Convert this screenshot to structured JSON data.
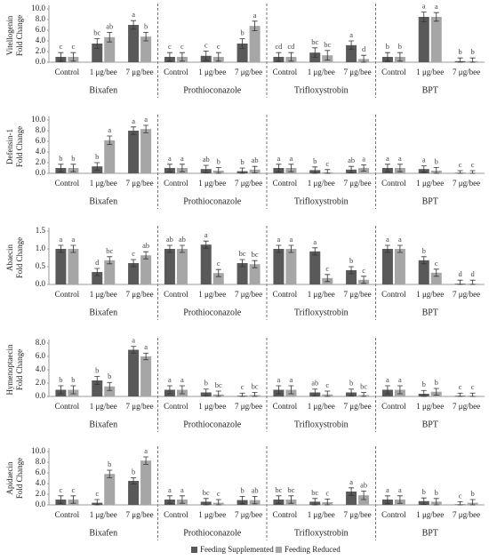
{
  "legend": [
    {
      "name": "Feeding Supplemented",
      "color": "#595959"
    },
    {
      "name": "Feeding Reduced",
      "color": "#a6a6a6"
    }
  ],
  "chart_data": [
    {
      "type": "bar",
      "ylabel": [
        "Vitellogenin",
        "Fold Change"
      ],
      "ylim": [
        0,
        10
      ],
      "yticks": [
        {
          "value": 0,
          "label": "0.0"
        },
        {
          "value": 2,
          "label": "2.0"
        },
        {
          "value": 4,
          "label": "4.0"
        },
        {
          "value": 6,
          "label": "6.0"
        },
        {
          "value": 8,
          "label": "8.0"
        },
        {
          "value": 10,
          "label": "10.0"
        }
      ],
      "groups": [
        "Bixafen",
        "Prothioconazole",
        "Trifloxystrobin",
        "BPT"
      ],
      "categories": [
        "Control",
        "1 μg/bee",
        "7 μg/bee",
        "Control",
        "1 μg/bee",
        "7 μg/bee",
        "Control",
        "1 μg/bee",
        "7 μg/bee",
        "Control",
        "1 μg/bee",
        "7 μg/bee"
      ],
      "series": [
        {
          "values": [
            1.0,
            3.5,
            7.0,
            1.0,
            1.2,
            3.5,
            1.0,
            1.8,
            3.2,
            1.0,
            8.5,
            0.2
          ],
          "errors": [
            0.8,
            0.9,
            0.8,
            0.8,
            0.9,
            0.9,
            0.8,
            0.9,
            0.8,
            0.8,
            0.9,
            0.6
          ],
          "letters": [
            "c",
            "bc",
            "a",
            "c",
            "c",
            "b",
            "cd",
            "bc",
            "a",
            "b",
            "a",
            "b"
          ]
        },
        {
          "values": [
            1.0,
            4.7,
            4.8,
            1.0,
            1.0,
            6.8,
            1.0,
            1.3,
            0.6,
            1.0,
            8.5,
            0.2
          ],
          "errors": [
            0.8,
            0.9,
            0.8,
            0.8,
            0.8,
            0.9,
            0.8,
            0.9,
            0.7,
            0.8,
            0.8,
            0.6
          ],
          "letters": [
            "c",
            "ab",
            "b",
            "c",
            "c",
            "a",
            "cd",
            "bc",
            "d",
            "b",
            "a",
            "b"
          ]
        }
      ]
    },
    {
      "type": "bar",
      "ylabel": [
        "Defensin-1",
        "Fold Change"
      ],
      "ylim": [
        0,
        10
      ],
      "yticks": [
        {
          "value": 0,
          "label": "0.0"
        },
        {
          "value": 2,
          "label": "2.0"
        },
        {
          "value": 4,
          "label": "4.0"
        },
        {
          "value": 6,
          "label": "6.0"
        },
        {
          "value": 8,
          "label": "8.0"
        },
        {
          "value": 10,
          "label": "10.0"
        }
      ],
      "groups": [
        "Bixafen",
        "Prothioconazole",
        "Trifloxystrobin",
        "BPT"
      ],
      "categories": [
        "Control",
        "1 μg/bee",
        "7 μg/bee",
        "Control",
        "1 μg/bee",
        "7 μg/bee",
        "Control",
        "1 μg/bee",
        "7 μg/bee",
        "Control",
        "1 μg/bee",
        "7 μg/bee"
      ],
      "series": [
        {
          "values": [
            1.0,
            1.3,
            8.0,
            1.0,
            0.8,
            0.4,
            1.0,
            0.6,
            0.7,
            1.0,
            0.8,
            0.1
          ],
          "errors": [
            0.7,
            0.7,
            0.7,
            0.7,
            0.7,
            0.6,
            0.7,
            0.6,
            0.6,
            0.7,
            0.6,
            0.4
          ],
          "letters": [
            "b",
            "b",
            "a",
            "a",
            "ab",
            "b",
            "a",
            "b",
            "ab",
            "a",
            "a",
            "c"
          ]
        },
        {
          "values": [
            1.0,
            6.2,
            8.3,
            1.0,
            0.5,
            0.7,
            1.0,
            0.2,
            1.0,
            1.0,
            0.5,
            0.1
          ],
          "errors": [
            0.7,
            0.8,
            0.7,
            0.7,
            0.6,
            0.6,
            0.7,
            0.5,
            0.6,
            0.7,
            0.6,
            0.4
          ],
          "letters": [
            "b",
            "a",
            "a",
            "a",
            "b",
            "ab",
            "a",
            "c",
            "a",
            "a",
            "b",
            "c"
          ]
        }
      ]
    },
    {
      "type": "bar",
      "ylabel": [
        "Abaecin",
        "Fold Change"
      ],
      "ylim": [
        0,
        1.5
      ],
      "yticks": [
        {
          "value": 0,
          "label": "0.0"
        },
        {
          "value": 0.5,
          "label": "0.5"
        },
        {
          "value": 1,
          "label": "1.0"
        },
        {
          "value": 1.5,
          "label": "1.5"
        }
      ],
      "groups": [
        "Bixafen",
        "Prothioconazole",
        "Trifloxystrobin",
        "BPT"
      ],
      "categories": [
        "Control",
        "1 μg/bee",
        "7 μg/bee",
        "Control",
        "1 μg/bee",
        "7 μg/bee",
        "Control",
        "1 μg/bee",
        "7 μg/bee",
        "Control",
        "1 μg/bee",
        "7 μg/bee"
      ],
      "series": [
        {
          "values": [
            1.0,
            0.35,
            0.6,
            1.0,
            1.12,
            0.6,
            1.0,
            0.93,
            0.4,
            1.0,
            0.68,
            0.02
          ],
          "errors": [
            0.1,
            0.1,
            0.1,
            0.1,
            0.1,
            0.1,
            0.1,
            0.1,
            0.1,
            0.1,
            0.1,
            0.1
          ],
          "letters": [
            "a",
            "d",
            "c",
            "ab",
            "a",
            "bc",
            "a",
            "a",
            "b",
            "a",
            "b",
            "d"
          ]
        },
        {
          "values": [
            1.0,
            0.68,
            0.82,
            1.0,
            0.32,
            0.57,
            1.0,
            0.18,
            0.13,
            1.0,
            0.33,
            0.02
          ],
          "errors": [
            0.1,
            0.1,
            0.1,
            0.1,
            0.1,
            0.1,
            0.1,
            0.1,
            0.1,
            0.1,
            0.1,
            0.1
          ],
          "letters": [
            "a",
            "bc",
            "ab",
            "ab",
            "c",
            "bc",
            "a",
            "c",
            "c",
            "a",
            "c",
            "d"
          ]
        }
      ]
    },
    {
      "type": "bar",
      "ylabel": [
        "Hymenoptaecin",
        "Fold Change"
      ],
      "ylim": [
        0,
        8
      ],
      "yticks": [
        {
          "value": 0,
          "label": "0.0"
        },
        {
          "value": 2,
          "label": "2.0"
        },
        {
          "value": 4,
          "label": "4.0"
        },
        {
          "value": 6,
          "label": "6.0"
        },
        {
          "value": 8,
          "label": "8.0"
        }
      ],
      "groups": [
        "Bixafen",
        "Prothioconazole",
        "Trifloxystrobin",
        "BPT"
      ],
      "categories": [
        "Control",
        "1 μg/bee",
        "7 μg/bee",
        "Control",
        "1 μg/bee",
        "7 μg/bee",
        "Control",
        "1 μg/bee",
        "7 μg/bee",
        "Control",
        "1 μg/bee",
        "7 μg/bee"
      ],
      "series": [
        {
          "values": [
            1.0,
            2.4,
            7.0,
            1.0,
            0.6,
            0.1,
            1.0,
            0.6,
            0.6,
            1.0,
            0.4,
            0.1
          ],
          "errors": [
            0.6,
            0.6,
            0.5,
            0.6,
            0.5,
            0.4,
            0.6,
            0.5,
            0.5,
            0.6,
            0.5,
            0.4
          ],
          "letters": [
            "b",
            "b",
            "a",
            "a",
            "b",
            "c",
            "a",
            "ab",
            "b",
            "a",
            "b",
            "c"
          ]
        },
        {
          "values": [
            1.0,
            1.5,
            6.0,
            1.0,
            0.3,
            0.2,
            1.0,
            0.3,
            0.2,
            1.0,
            0.7,
            0.1
          ],
          "errors": [
            0.6,
            0.6,
            0.5,
            0.6,
            0.5,
            0.4,
            0.6,
            0.5,
            0.4,
            0.6,
            0.5,
            0.4
          ],
          "letters": [
            "b",
            "b",
            "a",
            "a",
            "bc",
            "bc",
            "a",
            "c",
            "bc",
            "a",
            "b",
            "c"
          ]
        }
      ]
    },
    {
      "type": "bar",
      "ylabel": [
        "Apidaecin",
        "Fold Change"
      ],
      "ylim": [
        0,
        10
      ],
      "yticks": [
        {
          "value": 0,
          "label": "0.0"
        },
        {
          "value": 2,
          "label": "2.0"
        },
        {
          "value": 4,
          "label": "4.0"
        },
        {
          "value": 6,
          "label": "6.0"
        },
        {
          "value": 8,
          "label": "8.0"
        },
        {
          "value": 10,
          "label": "10.0"
        }
      ],
      "groups": [
        "Bixafen",
        "Prothioconazole",
        "Trifloxystrobin",
        "BPT"
      ],
      "categories": [
        "Control",
        "1 μg/bee",
        "7 μg/bee",
        "Control",
        "1 μg/bee",
        "7 μg/bee",
        "Control",
        "1 μg/bee",
        "7 μg/bee",
        "Control",
        "1 μg/bee",
        "7 μg/bee"
      ],
      "series": [
        {
          "values": [
            1.0,
            0.4,
            4.5,
            1.0,
            0.6,
            0.9,
            1.0,
            0.6,
            2.5,
            1.0,
            0.7,
            0.1
          ],
          "errors": [
            0.7,
            0.6,
            0.6,
            0.7,
            0.6,
            0.7,
            0.7,
            0.6,
            0.7,
            0.7,
            0.6,
            0.5
          ],
          "letters": [
            "c",
            "c",
            "b",
            "a",
            "bc",
            "b",
            "bc",
            "bc",
            "a",
            "a",
            "b",
            "c"
          ]
        },
        {
          "values": [
            1.0,
            5.8,
            8.3,
            1.0,
            0.4,
            0.9,
            1.0,
            0.5,
            1.8,
            1.0,
            0.6,
            0.4
          ],
          "errors": [
            0.7,
            0.7,
            0.7,
            0.7,
            0.6,
            0.7,
            0.7,
            0.6,
            0.8,
            0.7,
            0.6,
            0.6
          ],
          "letters": [
            "c",
            "b",
            "a",
            "a",
            "c",
            "ab",
            "bc",
            "c",
            "ab",
            "a",
            "b",
            "b"
          ]
        }
      ]
    }
  ]
}
